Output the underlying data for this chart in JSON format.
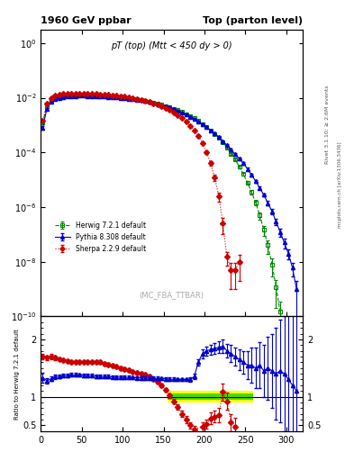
{
  "title_left": "1960 GeV ppbar",
  "title_right": "Top (parton level)",
  "plot_title": "pT (top) (Mtt < 450 dy > 0)",
  "watermark": "(MC_FBA_TTBAR)",
  "right_label_top": "Rivet 3.1.10; ≥ 2.6M events",
  "right_label_bottom": "mcplots.cern.ch [arXiv:1306.3436]",
  "ylabel_ratio": "Ratio to Herwig 7.2.1 default",
  "xlim": [
    0,
    320
  ],
  "ylim_main": [
    1e-10,
    3.0
  ],
  "ylim_ratio": [
    0.4,
    2.4
  ],
  "herwig_color": "#008800",
  "pythia_color": "#0000cc",
  "sherpa_color": "#cc0000",
  "herwig_x": [
    2.5,
    7.5,
    12.5,
    17.5,
    22.5,
    27.5,
    32.5,
    37.5,
    42.5,
    47.5,
    52.5,
    57.5,
    62.5,
    67.5,
    72.5,
    77.5,
    82.5,
    87.5,
    92.5,
    97.5,
    102.5,
    107.5,
    112.5,
    117.5,
    122.5,
    127.5,
    132.5,
    137.5,
    142.5,
    147.5,
    152.5,
    157.5,
    162.5,
    167.5,
    172.5,
    177.5,
    182.5,
    187.5,
    192.5,
    197.5,
    202.5,
    207.5,
    212.5,
    217.5,
    222.5,
    227.5,
    232.5,
    237.5,
    242.5,
    247.5,
    252.5,
    257.5,
    262.5,
    267.5,
    272.5,
    277.5,
    282.5,
    287.5,
    292.5,
    297.5
  ],
  "herwig_y": [
    0.0012,
    0.005,
    0.008,
    0.01,
    0.011,
    0.0115,
    0.012,
    0.0122,
    0.0122,
    0.0122,
    0.0121,
    0.012,
    0.0118,
    0.0116,
    0.0114,
    0.0112,
    0.011,
    0.0108,
    0.0105,
    0.0102,
    0.0098,
    0.0094,
    0.009,
    0.0086,
    0.0081,
    0.0076,
    0.0071,
    0.0066,
    0.006,
    0.0055,
    0.005,
    0.0045,
    0.004,
    0.0035,
    0.003,
    0.0025,
    0.0021,
    0.00175,
    0.0014,
    0.0011,
    0.00085,
    0.00065,
    0.00048,
    0.00034,
    0.00023,
    0.00015,
    9e-05,
    5.5e-05,
    3e-05,
    1.6e-05,
    8e-06,
    3.5e-06,
    1.5e-06,
    5e-07,
    1.5e-07,
    4e-08,
    8e-09,
    1.2e-09,
    1.5e-10,
    2e-11
  ],
  "herwig_yerr": [
    0.0001,
    0.0003,
    0.0004,
    0.0004,
    0.0004,
    0.0004,
    0.0004,
    0.0004,
    0.0004,
    0.0004,
    0.0004,
    0.0004,
    0.0004,
    0.0004,
    0.0004,
    0.0004,
    0.0004,
    0.0004,
    0.0004,
    0.0004,
    0.0003,
    0.0003,
    0.0003,
    0.0003,
    0.0003,
    0.0003,
    0.0003,
    0.0002,
    0.0002,
    0.0002,
    0.0002,
    0.0002,
    0.0002,
    0.00015,
    0.00015,
    0.0001,
    0.0001,
    8e-05,
    7e-05,
    6e-05,
    5e-05,
    4e-05,
    3e-05,
    2e-05,
    1.5e-05,
    1e-05,
    6e-06,
    4e-06,
    3e-06,
    2e-06,
    1e-06,
    6e-07,
    3e-07,
    1.5e-07,
    6e-08,
    2e-08,
    5e-09,
    1e-09,
    2e-10,
    3e-11
  ],
  "pythia_x": [
    2.5,
    7.5,
    12.5,
    17.5,
    22.5,
    27.5,
    32.5,
    37.5,
    42.5,
    47.5,
    52.5,
    57.5,
    62.5,
    67.5,
    72.5,
    77.5,
    82.5,
    87.5,
    92.5,
    97.5,
    102.5,
    107.5,
    112.5,
    117.5,
    122.5,
    127.5,
    132.5,
    137.5,
    142.5,
    147.5,
    152.5,
    157.5,
    162.5,
    167.5,
    172.5,
    177.5,
    182.5,
    187.5,
    192.5,
    197.5,
    202.5,
    207.5,
    212.5,
    217.5,
    222.5,
    227.5,
    232.5,
    237.5,
    242.5,
    247.5,
    252.5,
    257.5,
    262.5,
    267.5,
    272.5,
    277.5,
    282.5,
    287.5,
    292.5,
    297.5,
    302.5,
    307.5,
    312.5
  ],
  "pythia_y": [
    0.0008,
    0.004,
    0.007,
    0.009,
    0.01,
    0.0106,
    0.011,
    0.0114,
    0.0116,
    0.0117,
    0.0117,
    0.0116,
    0.0115,
    0.0113,
    0.0111,
    0.0109,
    0.0107,
    0.0105,
    0.0102,
    0.0099,
    0.0096,
    0.0092,
    0.0088,
    0.0084,
    0.008,
    0.0075,
    0.007,
    0.0065,
    0.0059,
    0.0054,
    0.0049,
    0.0044,
    0.0039,
    0.0034,
    0.0029,
    0.00245,
    0.002,
    0.00165,
    0.00135,
    0.0011,
    0.00085,
    0.00065,
    0.0005,
    0.00036,
    0.00026,
    0.00018,
    0.00013,
    8.5e-05,
    6e-05,
    4e-05,
    2.5e-05,
    1.5e-05,
    9e-06,
    5e-06,
    2.8e-06,
    1.4e-06,
    7e-07,
    3e-07,
    1.2e-07,
    5e-08,
    2e-08,
    6e-09,
    1e-09
  ],
  "pythia_yerr": [
    0.0001,
    0.0003,
    0.0004,
    0.0004,
    0.0004,
    0.0004,
    0.0004,
    0.0004,
    0.0004,
    0.0004,
    0.0004,
    0.0004,
    0.0004,
    0.0004,
    0.0004,
    0.0004,
    0.0004,
    0.0004,
    0.0004,
    0.0003,
    0.0003,
    0.0003,
    0.0003,
    0.0003,
    0.0003,
    0.0003,
    0.0003,
    0.0002,
    0.0002,
    0.0002,
    0.0002,
    0.0002,
    0.00015,
    0.00015,
    0.00015,
    0.0001,
    0.0001,
    8e-05,
    7e-05,
    6e-05,
    5e-05,
    4e-05,
    3e-05,
    2.5e-05,
    2e-05,
    1.5e-05,
    1e-05,
    7e-06,
    5e-06,
    3.5e-06,
    2.5e-06,
    1.5e-06,
    1e-06,
    6e-07,
    4e-07,
    2.5e-07,
    1.5e-07,
    8e-08,
    4e-08,
    2e-08,
    8e-09,
    3e-09,
    1e-09
  ],
  "sherpa_x": [
    2.5,
    7.5,
    12.5,
    17.5,
    22.5,
    27.5,
    32.5,
    37.5,
    42.5,
    47.5,
    52.5,
    57.5,
    62.5,
    67.5,
    72.5,
    77.5,
    82.5,
    87.5,
    92.5,
    97.5,
    102.5,
    107.5,
    112.5,
    117.5,
    122.5,
    127.5,
    132.5,
    137.5,
    142.5,
    147.5,
    152.5,
    157.5,
    162.5,
    167.5,
    172.5,
    177.5,
    182.5,
    187.5,
    192.5,
    197.5,
    202.5,
    207.5,
    212.5,
    217.5,
    222.5,
    227.5,
    232.5,
    237.5,
    242.5
  ],
  "sherpa_y": [
    0.0015,
    0.006,
    0.01,
    0.0125,
    0.0135,
    0.014,
    0.0142,
    0.0144,
    0.0144,
    0.0144,
    0.0143,
    0.0142,
    0.014,
    0.0138,
    0.0135,
    0.0132,
    0.0128,
    0.0124,
    0.012,
    0.0115,
    0.011,
    0.0105,
    0.0098,
    0.0092,
    0.0085,
    0.0078,
    0.0071,
    0.0063,
    0.0056,
    0.0049,
    0.0042,
    0.0035,
    0.0029,
    0.0023,
    0.0018,
    0.00135,
    0.00095,
    0.00065,
    0.0004,
    0.00022,
    0.0001,
    4e-05,
    1.2e-05,
    2.5e-06,
    2.5e-07,
    1.5e-08,
    5e-09,
    5e-09,
    1e-08
  ],
  "sherpa_yerr": [
    0.0001,
    0.0003,
    0.0004,
    0.0004,
    0.0004,
    0.0004,
    0.0004,
    0.0004,
    0.0004,
    0.0004,
    0.0004,
    0.0004,
    0.0004,
    0.0004,
    0.0004,
    0.0004,
    0.0004,
    0.0004,
    0.0003,
    0.0003,
    0.0003,
    0.0003,
    0.0003,
    0.0003,
    0.0002,
    0.0002,
    0.0002,
    0.0002,
    0.0002,
    0.0002,
    0.00015,
    0.00015,
    0.0001,
    0.0001,
    8e-05,
    6e-05,
    5e-05,
    4e-05,
    3e-05,
    2e-05,
    1.2e-05,
    7e-06,
    3e-06,
    9e-07,
    1.5e-07,
    8e-09,
    4e-09,
    4e-09,
    8e-09
  ],
  "ratio_pythia_x": [
    2.5,
    7.5,
    12.5,
    17.5,
    22.5,
    27.5,
    32.5,
    37.5,
    42.5,
    47.5,
    52.5,
    57.5,
    62.5,
    67.5,
    72.5,
    77.5,
    82.5,
    87.5,
    92.5,
    97.5,
    102.5,
    107.5,
    112.5,
    117.5,
    122.5,
    127.5,
    132.5,
    137.5,
    142.5,
    147.5,
    152.5,
    157.5,
    162.5,
    167.5,
    172.5,
    177.5,
    182.5,
    187.5,
    192.5,
    197.5,
    202.5,
    207.5,
    212.5,
    217.5,
    222.5,
    227.5,
    232.5,
    237.5,
    242.5,
    247.5,
    252.5,
    257.5,
    262.5,
    267.5,
    272.5,
    277.5,
    282.5,
    287.5,
    292.5,
    297.5,
    302.5,
    307.5,
    312.5
  ],
  "ratio_pythia_y": [
    1.33,
    1.28,
    1.31,
    1.35,
    1.36,
    1.37,
    1.375,
    1.38,
    1.38,
    1.378,
    1.375,
    1.372,
    1.37,
    1.36,
    1.355,
    1.35,
    1.348,
    1.345,
    1.34,
    1.34,
    1.338,
    1.335,
    1.332,
    1.33,
    1.328,
    1.325,
    1.32,
    1.32,
    1.318,
    1.315,
    1.31,
    1.305,
    1.302,
    1.3,
    1.3,
    1.3,
    1.3,
    1.35,
    1.6,
    1.75,
    1.8,
    1.82,
    1.84,
    1.86,
    1.88,
    1.8,
    1.75,
    1.7,
    1.65,
    1.6,
    1.55,
    1.55,
    1.5,
    1.55,
    1.45,
    1.5,
    1.45,
    1.4,
    1.45,
    1.4,
    1.3,
    1.2,
    1.1
  ],
  "ratio_pythia_yerr": [
    0.08,
    0.05,
    0.04,
    0.04,
    0.03,
    0.03,
    0.03,
    0.03,
    0.03,
    0.03,
    0.03,
    0.03,
    0.03,
    0.03,
    0.03,
    0.03,
    0.03,
    0.03,
    0.03,
    0.03,
    0.03,
    0.03,
    0.03,
    0.03,
    0.03,
    0.03,
    0.03,
    0.03,
    0.03,
    0.03,
    0.03,
    0.03,
    0.03,
    0.03,
    0.03,
    0.03,
    0.04,
    0.05,
    0.06,
    0.08,
    0.08,
    0.09,
    0.09,
    0.1,
    0.12,
    0.12,
    0.15,
    0.15,
    0.18,
    0.2,
    0.25,
    0.3,
    0.35,
    0.4,
    0.45,
    0.55,
    0.65,
    0.8,
    0.9,
    1.0,
    1.2,
    1.4,
    1.6
  ],
  "ratio_sherpa_x": [
    2.5,
    7.5,
    12.5,
    17.5,
    22.5,
    27.5,
    32.5,
    37.5,
    42.5,
    47.5,
    52.5,
    57.5,
    62.5,
    67.5,
    72.5,
    77.5,
    82.5,
    87.5,
    92.5,
    97.5,
    102.5,
    107.5,
    112.5,
    117.5,
    122.5,
    127.5,
    132.5,
    137.5,
    142.5,
    147.5,
    152.5,
    157.5,
    162.5,
    167.5,
    172.5,
    177.5,
    182.5,
    187.5,
    192.5,
    197.5,
    202.5,
    207.5,
    212.5,
    217.5,
    222.5,
    227.5,
    232.5,
    237.5,
    242.5
  ],
  "ratio_sherpa_y": [
    1.7,
    1.68,
    1.7,
    1.68,
    1.66,
    1.64,
    1.62,
    1.6,
    1.6,
    1.6,
    1.6,
    1.6,
    1.6,
    1.6,
    1.6,
    1.58,
    1.56,
    1.54,
    1.52,
    1.5,
    1.48,
    1.46,
    1.44,
    1.42,
    1.4,
    1.38,
    1.35,
    1.3,
    1.26,
    1.2,
    1.12,
    1.02,
    0.92,
    0.82,
    0.7,
    0.6,
    0.5,
    0.43,
    0.38,
    0.48,
    0.52,
    0.62,
    0.65,
    0.68,
    1.08,
    0.92,
    0.55,
    0.48,
    0.38
  ],
  "ratio_sherpa_yerr": [
    0.05,
    0.04,
    0.04,
    0.04,
    0.03,
    0.03,
    0.03,
    0.03,
    0.03,
    0.03,
    0.03,
    0.03,
    0.03,
    0.03,
    0.03,
    0.03,
    0.03,
    0.03,
    0.03,
    0.03,
    0.03,
    0.03,
    0.03,
    0.03,
    0.03,
    0.03,
    0.03,
    0.03,
    0.03,
    0.03,
    0.03,
    0.04,
    0.04,
    0.05,
    0.05,
    0.06,
    0.06,
    0.06,
    0.07,
    0.08,
    0.08,
    0.1,
    0.1,
    0.12,
    0.15,
    0.15,
    0.15,
    0.15,
    0.15
  ],
  "band_x": [
    155,
    160,
    165,
    170,
    175,
    180,
    185,
    190,
    195,
    200,
    205,
    210,
    215,
    220,
    225,
    230,
    235,
    240,
    245,
    250,
    255,
    260
  ],
  "yellow_upper": [
    1.1,
    1.1,
    1.1,
    1.1,
    1.1,
    1.1,
    1.1,
    1.1,
    1.1,
    1.1,
    1.1,
    1.1,
    1.1,
    1.1,
    1.1,
    1.1,
    1.1,
    1.1,
    1.1,
    1.1,
    1.1,
    1.1
  ],
  "yellow_lower": [
    0.9,
    0.9,
    0.9,
    0.9,
    0.9,
    0.9,
    0.9,
    0.9,
    0.9,
    0.9,
    0.9,
    0.9,
    0.9,
    0.9,
    0.9,
    0.9,
    0.9,
    0.9,
    0.9,
    0.9,
    0.9,
    0.9
  ],
  "green_upper": [
    1.05,
    1.05,
    1.05,
    1.05,
    1.05,
    1.05,
    1.05,
    1.05,
    1.05,
    1.05,
    1.05,
    1.05,
    1.05,
    1.05,
    1.05,
    1.05,
    1.05,
    1.05,
    1.05,
    1.05,
    1.05,
    1.05
  ],
  "green_lower": [
    0.95,
    0.95,
    0.95,
    0.95,
    0.95,
    0.95,
    0.95,
    0.95,
    0.95,
    0.95,
    0.95,
    0.95,
    0.95,
    0.95,
    0.95,
    0.95,
    0.95,
    0.95,
    0.95,
    0.95,
    0.95,
    0.95
  ]
}
